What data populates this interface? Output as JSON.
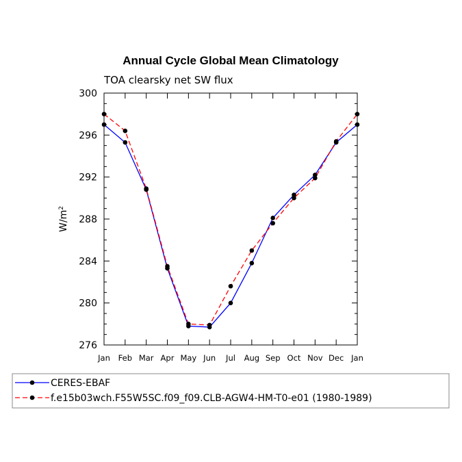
{
  "chart_data": {
    "type": "line",
    "title": "Annual Cycle Global Mean Climatology",
    "subtitle": "TOA clearsky net SW flux",
    "ylabel": "W/m",
    "ylabel_superscript": "2",
    "xlabel": "",
    "ylim": [
      276,
      300
    ],
    "yticks": [
      276,
      280,
      284,
      288,
      292,
      296,
      300
    ],
    "categories": [
      "Jan",
      "Feb",
      "Mar",
      "Apr",
      "May",
      "Jun",
      "Jul",
      "Aug",
      "Sep",
      "Oct",
      "Nov",
      "Dec",
      "Jan"
    ],
    "series": [
      {
        "name": "CERES-EBAF",
        "color": "#0000ff",
        "dash": "solid",
        "values": [
          297.0,
          295.3,
          290.8,
          283.3,
          277.8,
          277.7,
          280.0,
          283.8,
          288.1,
          290.3,
          292.2,
          295.3,
          297.0
        ]
      },
      {
        "name": "f.e15b03wch.F55W5SC.f09_f09.CLB-AGW4-HM-T0-e01 (1980-1989)",
        "color": "#ff0000",
        "dash": "dashed",
        "values": [
          298.0,
          296.4,
          290.9,
          283.5,
          278.0,
          277.9,
          281.6,
          285.0,
          287.6,
          290.0,
          291.9,
          295.4,
          298.0
        ]
      }
    ],
    "legend_position": "bottom"
  }
}
